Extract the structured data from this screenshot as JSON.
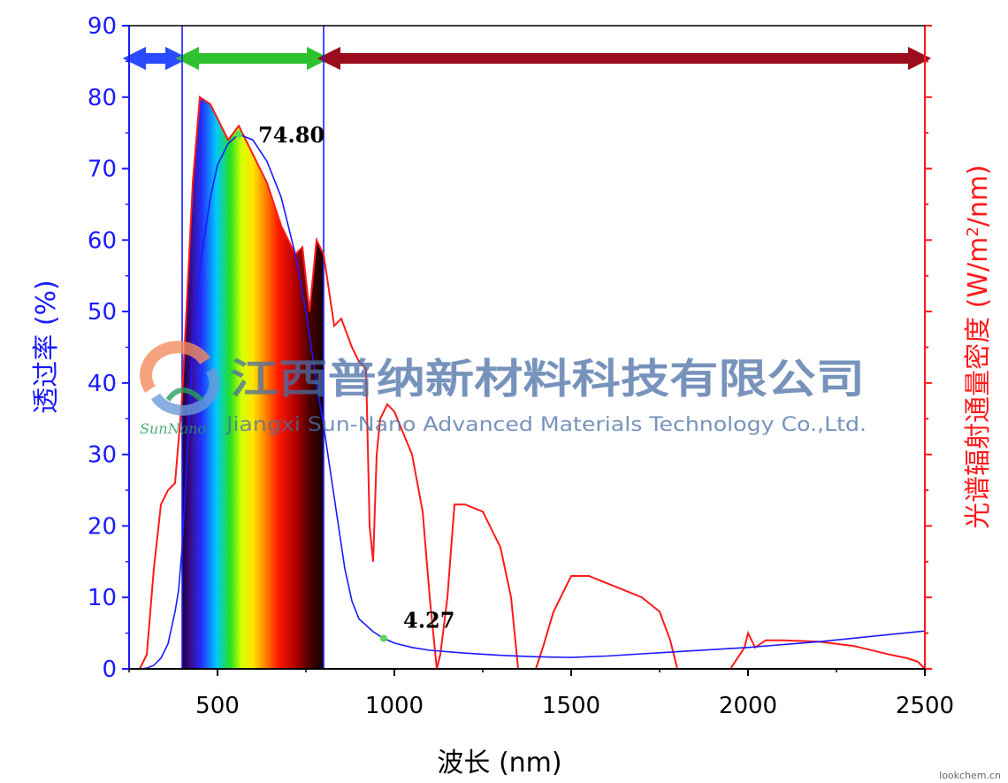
{
  "chart_data": {
    "type": "line",
    "x_axis": {
      "label": "波长 (nm)",
      "range": [
        250,
        2500
      ],
      "ticks": [
        500,
        1000,
        1500,
        2000,
        2500
      ]
    },
    "y_left": {
      "label": "透过率 (%)",
      "range": [
        0,
        90
      ],
      "ticks": [
        0,
        10,
        20,
        30,
        40,
        50,
        60,
        70,
        80,
        90
      ],
      "color": "#1a1aff"
    },
    "y_right": {
      "label_prefix": "光谱辐射通量密度 (W/m",
      "label_sup": "2",
      "label_suffix": "/nm)",
      "color": "#ff1a1a"
    },
    "series": [
      {
        "name": "transmittance",
        "axis": "left",
        "color": "#1a1aff",
        "x": [
          280,
          300,
          320,
          340,
          360,
          380,
          390,
          400,
          410,
          420,
          430,
          450,
          480,
          500,
          530,
          560,
          600,
          640,
          680,
          720,
          750,
          780,
          800,
          830,
          860,
          880,
          900,
          940,
          970,
          1000,
          1050,
          1100,
          1200,
          1300,
          1400,
          1500,
          1600,
          1700,
          1800,
          1900,
          2000,
          2100,
          2200,
          2300,
          2400,
          2500
        ],
        "y": [
          0,
          0.1,
          0.5,
          1.5,
          3.5,
          8,
          11,
          17,
          26,
          36,
          45,
          56,
          66,
          70.5,
          73.5,
          74.8,
          74,
          71,
          66,
          58,
          50,
          40,
          34,
          24,
          14,
          9.5,
          7,
          5.2,
          4.27,
          3.6,
          3.0,
          2.6,
          2.2,
          1.9,
          1.7,
          1.6,
          1.8,
          2.1,
          2.4,
          2.7,
          3.0,
          3.4,
          3.8,
          4.3,
          4.8,
          5.3
        ]
      },
      {
        "name": "solar spectral irradiance",
        "axis": "right",
        "color": "#ff1a1a",
        "x": [
          280,
          300,
          320,
          340,
          360,
          380,
          400,
          430,
          450,
          480,
          500,
          530,
          560,
          600,
          640,
          680,
          700,
          720,
          740,
          760,
          780,
          800,
          830,
          850,
          880,
          900,
          920,
          930,
          940,
          950,
          960,
          980,
          1000,
          1050,
          1080,
          1100,
          1120,
          1130,
          1150,
          1170,
          1200,
          1250,
          1300,
          1330,
          1350,
          1400,
          1420,
          1450,
          1500,
          1550,
          1600,
          1650,
          1700,
          1750,
          1780,
          1800,
          1820,
          1950,
          1990,
          2000,
          2020,
          2050,
          2100,
          2200,
          2300,
          2400,
          2450,
          2480,
          2500
        ],
        "y": [
          0,
          2,
          14,
          23,
          25,
          26,
          38,
          68,
          80,
          79,
          77,
          74,
          76,
          72,
          68,
          62,
          60,
          58,
          59,
          50,
          60,
          58,
          48,
          49,
          45,
          43,
          42,
          20,
          15,
          30,
          35,
          37,
          36,
          30,
          22,
          10,
          0,
          2,
          10,
          23,
          23,
          22,
          17,
          10,
          0,
          0,
          3,
          8,
          13,
          13,
          12,
          11,
          10,
          8,
          4,
          0,
          0,
          0,
          3,
          5,
          3,
          4,
          4,
          3.8,
          3.2,
          2,
          1.5,
          1,
          0
        ]
      }
    ],
    "regions": [
      {
        "name": "ultraviolet",
        "from": 250,
        "to": 400,
        "color": "#2a4bff"
      },
      {
        "name": "visible",
        "from": 400,
        "to": 800,
        "color": "#2fc22f"
      },
      {
        "name": "infrared",
        "from": 800,
        "to": 2500,
        "color": "#9b0c1e"
      }
    ],
    "annotations": [
      {
        "text": "74.80",
        "x": 560,
        "y": 74.8
      },
      {
        "text": "4.27",
        "x": 970,
        "y": 4.27
      }
    ]
  },
  "watermark": {
    "logo_text": "SunNano",
    "company_cn": "江西普纳新材料科技有限公司",
    "company_en": "Jiangxi Sun-Nano Advanced Materials Technology Co.,Ltd."
  },
  "credit": "lookchem.cn"
}
